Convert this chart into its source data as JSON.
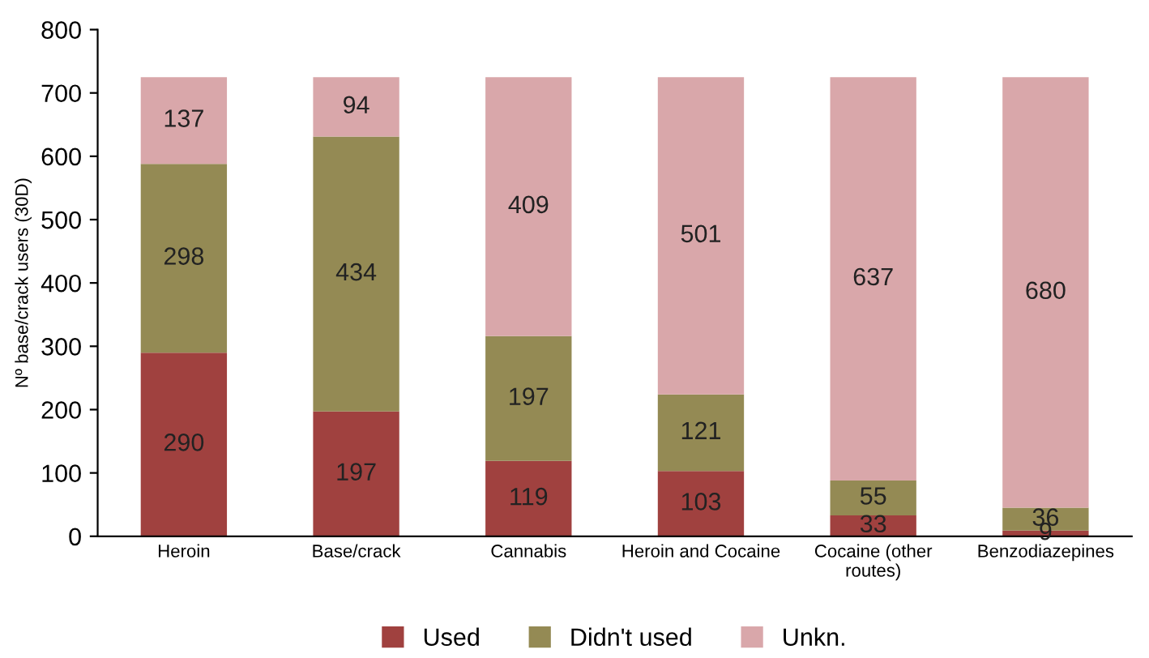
{
  "chart_data": {
    "type": "bar",
    "stacked": true,
    "ylabel": "Nº base/crack users (30D)",
    "categories": [
      "Heroin",
      "Base/crack",
      "Cannabis",
      "Heroin and Cocaine",
      "Cocaine (other\nroutes)",
      "Benzodiazepines"
    ],
    "series": [
      {
        "name": "Used",
        "color": "#a0413f",
        "values": [
          290,
          197,
          119,
          103,
          33,
          9
        ]
      },
      {
        "name": "Didn't used",
        "color": "#948a54",
        "values": [
          298,
          434,
          197,
          121,
          55,
          36
        ]
      },
      {
        "name": "Unkn.",
        "color": "#d9a7aa",
        "values": [
          137,
          94,
          409,
          501,
          637,
          680
        ]
      }
    ],
    "data_labels": true,
    "ylim": [
      0,
      800
    ],
    "yticks": [
      0,
      100,
      200,
      300,
      400,
      500,
      600,
      700,
      800
    ],
    "grid": false,
    "legend": "bottom"
  }
}
